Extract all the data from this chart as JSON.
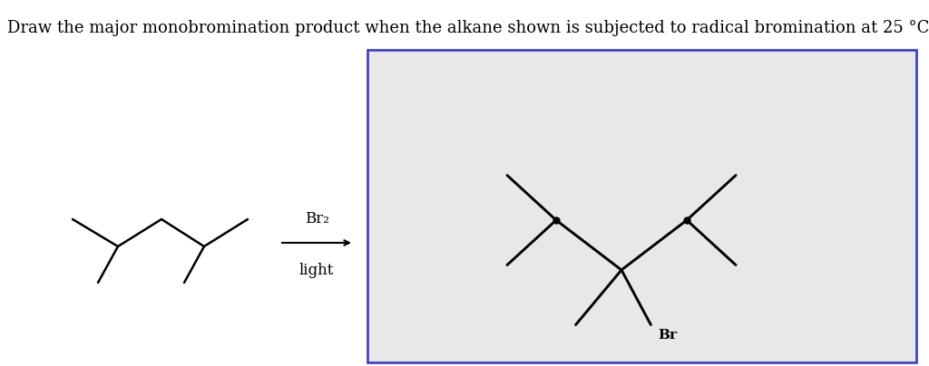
{
  "title_text": "Draw the major monobromination product when the alkane shown is subjected to radical bromination at 25 °C.",
  "title_fontsize": 13,
  "title_color": "#000000",
  "background_color": "#ffffff",
  "box_bg_color": "#e8e8e8",
  "box_border_color": "#4444bb",
  "line_color": "#000000",
  "line_width": 1.8,
  "dot_color": "#000000",
  "dot_size": 5,
  "br2_text": "Br₂",
  "light_text": "light",
  "reagent_fontsize": 12,
  "br_label": "Br",
  "br_fontsize": 11
}
